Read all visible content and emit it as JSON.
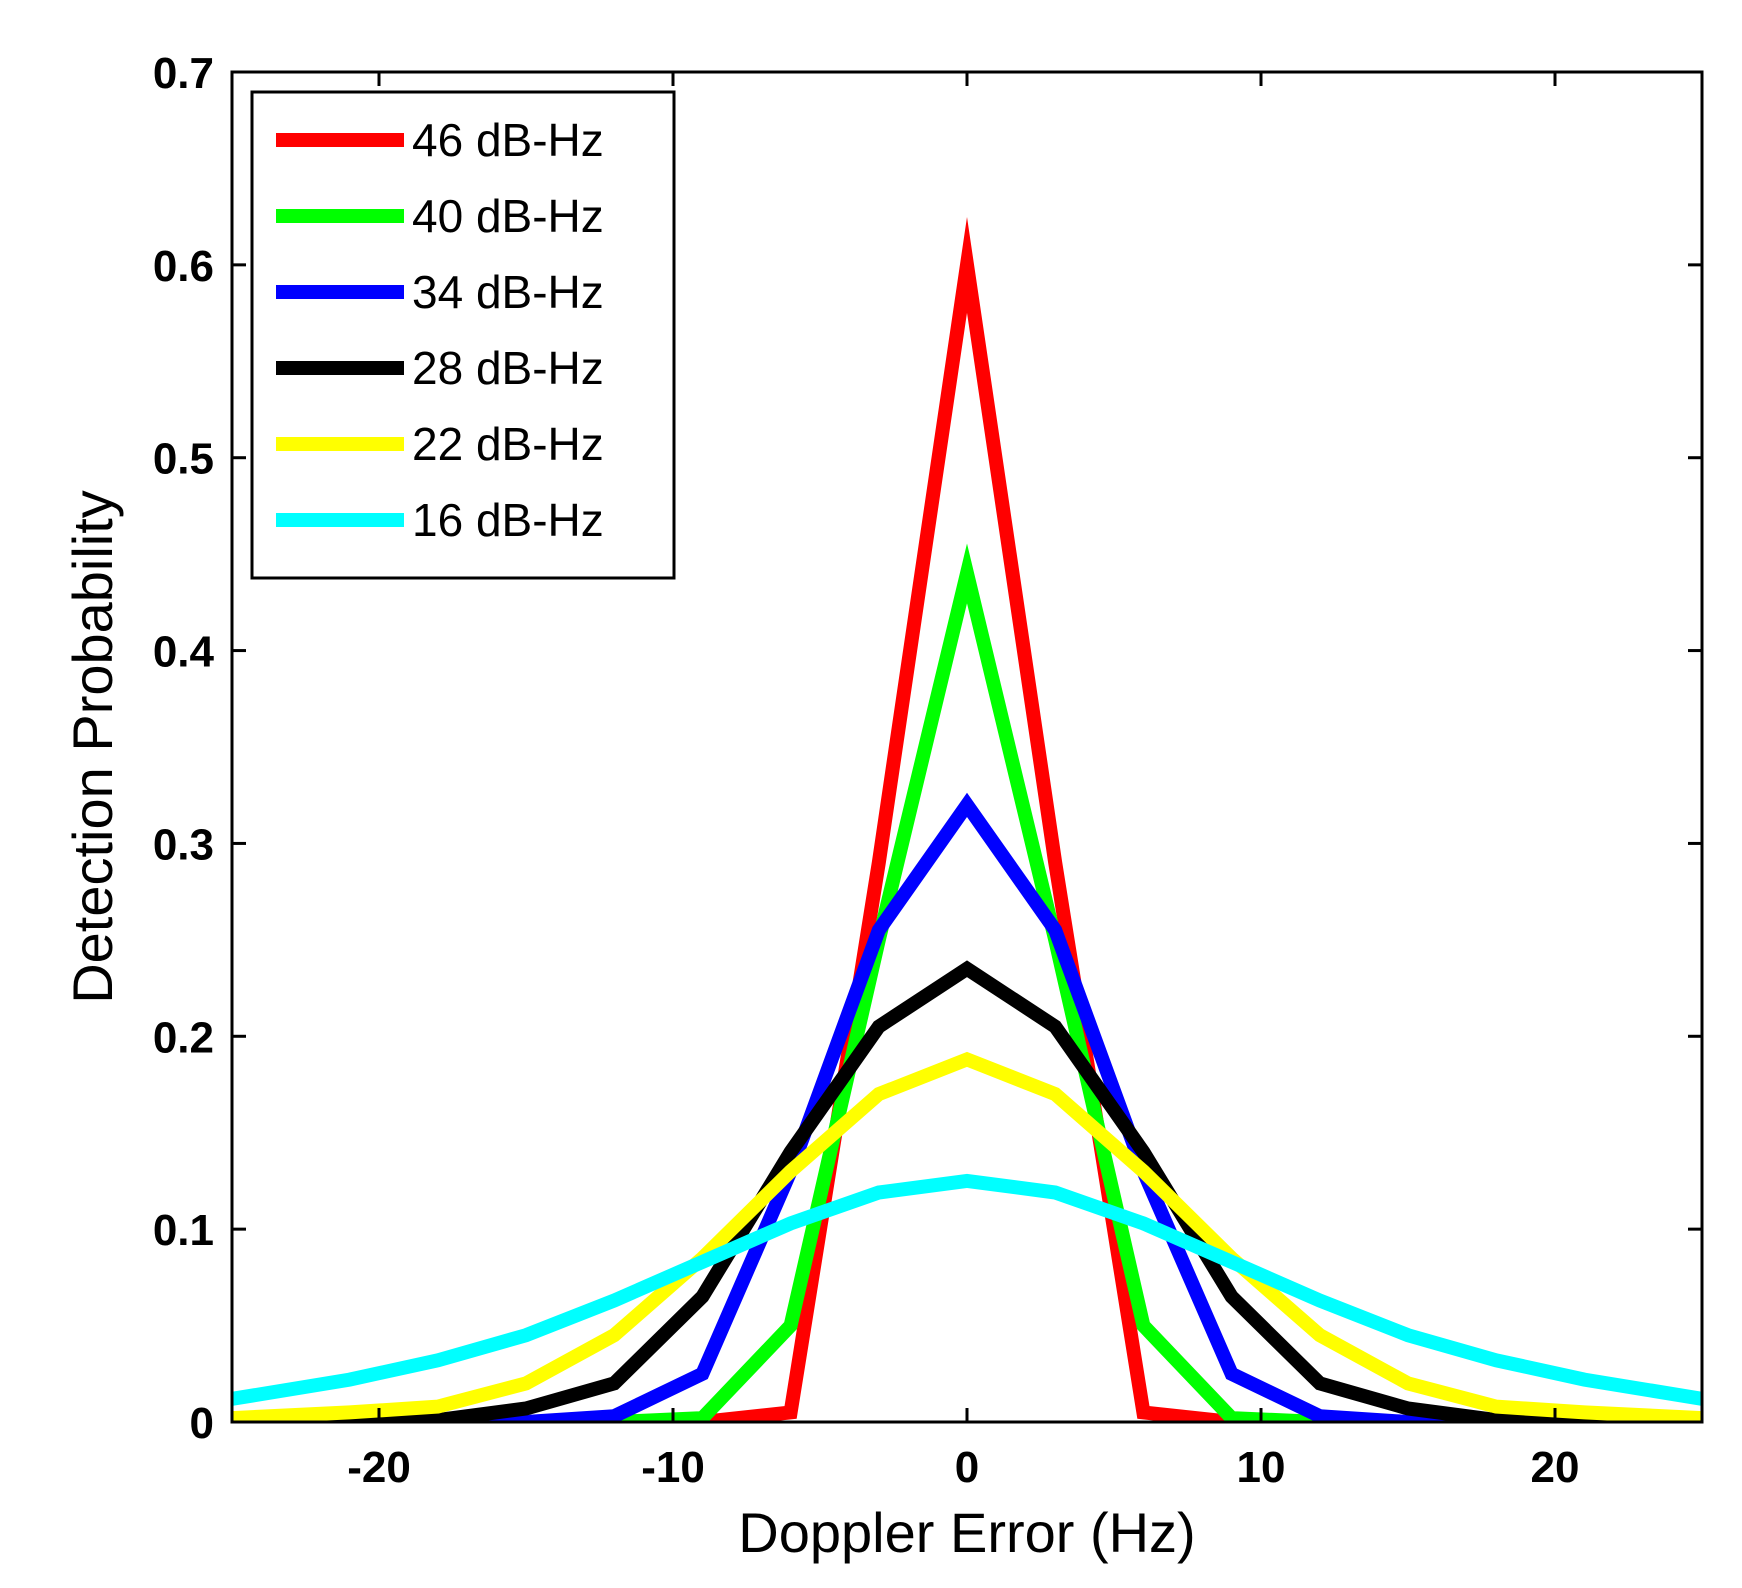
{
  "chart_data": {
    "type": "line",
    "title": "",
    "xlabel": "Doppler Error (Hz)",
    "ylabel": "Detection Probability",
    "xlim": [
      -25,
      25
    ],
    "ylim": [
      0,
      0.7
    ],
    "xticks": [
      -20,
      -10,
      0,
      10,
      20
    ],
    "xtick_labels": [
      "-20",
      "-10",
      "0",
      "10",
      "20"
    ],
    "yticks": [
      0,
      0.1,
      0.2,
      0.3,
      0.4,
      0.5,
      0.6,
      0.7
    ],
    "ytick_labels": [
      "0",
      "0.1",
      "0.2",
      "0.3",
      "0.4",
      "0.5",
      "0.6",
      "0.7"
    ],
    "grid": false,
    "legend_position": "top-left",
    "x": [
      -25,
      -21,
      -18,
      -15,
      -12,
      -9,
      -6,
      -3,
      0,
      3,
      6,
      9,
      12,
      15,
      18,
      21,
      25
    ],
    "series": [
      {
        "name": "46 dB-Hz",
        "color": "#ff0000",
        "values": [
          0,
          0,
          0,
          0,
          0,
          0,
          0.005,
          0.29,
          0.6,
          0.29,
          0.005,
          0,
          0,
          0,
          0,
          0,
          0
        ]
      },
      {
        "name": "40 dB-Hz",
        "color": "#00ff00",
        "values": [
          0,
          0,
          0,
          0,
          0,
          0.002,
          0.05,
          0.25,
          0.44,
          0.25,
          0.05,
          0.002,
          0,
          0,
          0,
          0,
          0
        ]
      },
      {
        "name": "34 dB-Hz",
        "color": "#0000ff",
        "values": [
          0,
          0,
          0,
          0,
          0.003,
          0.025,
          0.13,
          0.255,
          0.32,
          0.255,
          0.13,
          0.025,
          0.003,
          0,
          0,
          0,
          0
        ]
      },
      {
        "name": "28 dB-Hz",
        "color": "#000000",
        "values": [
          0,
          0,
          0.001,
          0.007,
          0.02,
          0.065,
          0.14,
          0.205,
          0.235,
          0.205,
          0.14,
          0.065,
          0.02,
          0.007,
          0.001,
          0,
          0
        ]
      },
      {
        "name": "22 dB-Hz",
        "color": "#ffff00",
        "values": [
          0.002,
          0.005,
          0.008,
          0.02,
          0.045,
          0.085,
          0.13,
          0.17,
          0.188,
          0.17,
          0.13,
          0.085,
          0.045,
          0.02,
          0.008,
          0.005,
          0.002
        ]
      },
      {
        "name": "16 dB-Hz",
        "color": "#00ffff",
        "values": [
          0.012,
          0.022,
          0.032,
          0.045,
          0.063,
          0.083,
          0.103,
          0.119,
          0.125,
          0.119,
          0.103,
          0.083,
          0.063,
          0.045,
          0.032,
          0.022,
          0.012
        ]
      }
    ]
  }
}
